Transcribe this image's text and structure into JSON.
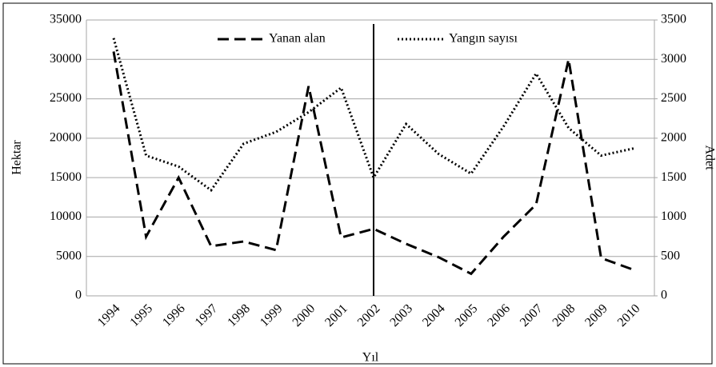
{
  "chart_data": {
    "type": "line",
    "x_label": "Yıl",
    "y_label": "Hektar",
    "y2_label": "Adet",
    "categories": [
      "1994",
      "1995",
      "1996",
      "1997",
      "1998",
      "1999",
      "2000",
      "2001",
      "2002",
      "2003",
      "2004",
      "2005",
      "2006",
      "2007",
      "2008",
      "2009",
      "2010"
    ],
    "series": [
      {
        "name": "Yanan alan",
        "color": "#000000",
        "dash": "dashed",
        "values": [
          31000,
          7500,
          15000,
          6300,
          6900,
          5800,
          26600,
          7400,
          8500,
          6600,
          4900,
          2800,
          7500,
          11600,
          30000,
          4800,
          3300
        ]
      },
      {
        "name": "Yangın sayısı",
        "color": "#000000",
        "dash": "dotted",
        "axis": "y2",
        "values": [
          3270,
          1780,
          1640,
          1340,
          1930,
          2080,
          2330,
          2640,
          1500,
          2180,
          1800,
          1550,
          2150,
          2820,
          2130,
          1780,
          1870
        ]
      }
    ],
    "ylim": [
      0,
      35000
    ],
    "yticks": [
      0,
      5000,
      10000,
      15000,
      20000,
      25000,
      30000,
      35000
    ],
    "y2lim": [
      0,
      3500
    ],
    "y2ticks": [
      0,
      500,
      1000,
      1500,
      2000,
      2500,
      3000,
      3500
    ],
    "grid": true,
    "legend": "top",
    "vline": "2002"
  }
}
